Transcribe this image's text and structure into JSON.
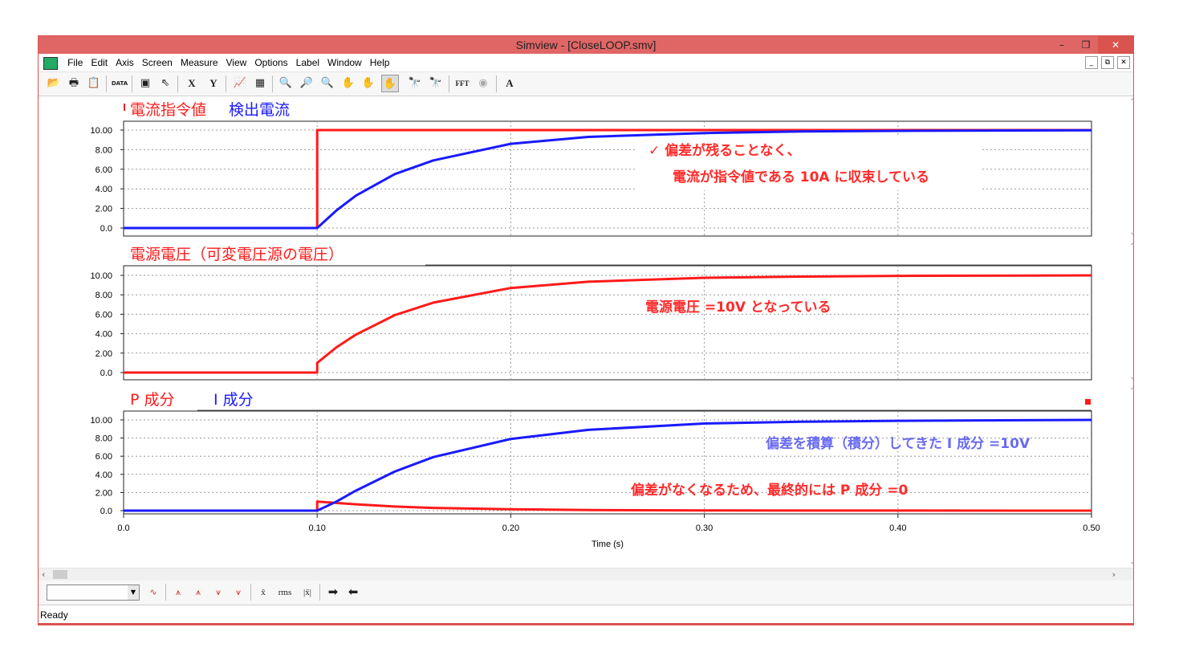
{
  "window": {
    "title": "Simview - [CloseLOOP.smv]",
    "controls": [
      "–",
      "❐",
      "✕"
    ],
    "child_controls": [
      "_",
      "⧉",
      "✕"
    ]
  },
  "menu": [
    "File",
    "Edit",
    "Axis",
    "Screen",
    "Measure",
    "View",
    "Options",
    "Label",
    "Window",
    "Help"
  ],
  "toolbar": {
    "x_label": "X",
    "y_label": "Y",
    "fft_label": "FFT",
    "a_label": "A"
  },
  "bottom_toolbar": {
    "combo_value": "",
    "mean_label": "x̄",
    "rms_label": "rms",
    "abs_mean_label": "|x̄|"
  },
  "status": "Ready",
  "colors": {
    "red": "#ff1a1a",
    "blue": "#1a1aff",
    "annotation_red": "#ff2a2a",
    "annotation_blue": "#6a6af2",
    "titlebar": "#e06666"
  },
  "chart_data": [
    {
      "type": "line",
      "legend": [
        "電流指令値",
        "検出電流"
      ],
      "series": [
        {
          "name": "電流指令値",
          "color": "#ff1a1a",
          "x": [
            0,
            0.1,
            0.1,
            0.5
          ],
          "y": [
            0,
            0,
            10,
            10
          ]
        },
        {
          "name": "検出電流",
          "color": "#1a1aff",
          "x": [
            0,
            0.1,
            0.11,
            0.12,
            0.14,
            0.16,
            0.2,
            0.24,
            0.3,
            0.35,
            0.4,
            0.5
          ],
          "y": [
            0,
            0,
            1.8,
            3.3,
            5.5,
            6.9,
            8.6,
            9.3,
            9.7,
            9.85,
            9.92,
            9.98
          ]
        }
      ],
      "ylim": [
        0,
        10
      ],
      "yticks": [
        "10.00",
        "8.00",
        "6.00",
        "4.00",
        "2.00",
        "0.0"
      ],
      "annotation": [
        "✓  偏差が残ることなく、",
        "電流が指令値である 10A に収束している"
      ]
    },
    {
      "type": "line",
      "legend": [
        "電源電圧（可変電圧源の電圧）"
      ],
      "series": [
        {
          "name": "電源電圧（可変電圧源の電圧）",
          "color": "#ff1a1a",
          "x": [
            0,
            0.1,
            0.1,
            0.11,
            0.12,
            0.14,
            0.16,
            0.2,
            0.24,
            0.3,
            0.35,
            0.4,
            0.5
          ],
          "y": [
            0,
            0,
            1.0,
            2.6,
            3.9,
            5.9,
            7.2,
            8.7,
            9.35,
            9.75,
            9.88,
            9.95,
            10
          ]
        }
      ],
      "ylim": [
        0,
        10
      ],
      "yticks": [
        "10.00",
        "8.00",
        "6.00",
        "4.00",
        "2.00",
        "0.0"
      ],
      "annotation": [
        "電源電圧 =10V となっている"
      ]
    },
    {
      "type": "line",
      "legend": [
        "P 成分",
        "I 成分"
      ],
      "series": [
        {
          "name": "P 成分",
          "color": "#ff1a1a",
          "x": [
            0,
            0.1,
            0.1,
            0.12,
            0.14,
            0.16,
            0.2,
            0.24,
            0.3,
            0.5
          ],
          "y": [
            0,
            0,
            1.0,
            0.7,
            0.45,
            0.3,
            0.15,
            0.06,
            0.02,
            0
          ]
        },
        {
          "name": "I 成分",
          "color": "#1a1aff",
          "x": [
            0,
            0.1,
            0.11,
            0.12,
            0.14,
            0.16,
            0.2,
            0.24,
            0.3,
            0.35,
            0.4,
            0.5
          ],
          "y": [
            0,
            0,
            1.0,
            2.2,
            4.3,
            5.9,
            7.9,
            8.9,
            9.6,
            9.8,
            9.9,
            10
          ]
        }
      ],
      "ylim": [
        0,
        10
      ],
      "yticks": [
        "10.00",
        "8.00",
        "6.00",
        "4.00",
        "2.00",
        "0.0"
      ],
      "annotation_blue": "偏差を積算（積分）してきた I 成分 =10V",
      "annotation_red": "偏差がなくなるため、最終的には P 成分 =0"
    }
  ],
  "xaxis": {
    "xlim": [
      0,
      0.5
    ],
    "tick_values": [
      0,
      0.1,
      0.2,
      0.3,
      0.4,
      0.5
    ],
    "tick_labels": [
      "0.0",
      "0.10",
      "0.20",
      "0.30",
      "0.40",
      "0.50"
    ],
    "xlabel": "Time (s)"
  }
}
